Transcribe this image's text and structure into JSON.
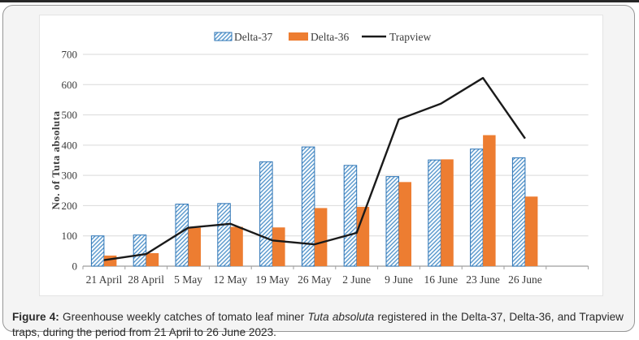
{
  "caption": {
    "label": "Figure 4:",
    "before_italic": " Greenhouse weekly catches of tomato leaf miner ",
    "italic": "Tuta absoluta",
    "after_italic": " registered in the Delta-37, Delta-36, and Trapview traps, during the period from 21 April to 26 June 2023."
  },
  "chart_data": {
    "type": "bar+line",
    "title": "",
    "xlabel": "",
    "ylabel": "No. of Tuta absoluta",
    "ylim": [
      0,
      700
    ],
    "ytick_step": 100,
    "grid": true,
    "legend_position": "top-center",
    "categories": [
      "21 April",
      "28 April",
      "5 May",
      "12 May",
      "19 May",
      "26 May",
      "2 June",
      "9 June",
      "16 June",
      "23 June",
      "26 June"
    ],
    "series": [
      {
        "name": "Delta-37",
        "type": "bar",
        "style": "hatched",
        "color": "#5B9BD5",
        "border": "#2E75B6",
        "values": [
          100,
          103,
          205,
          207,
          345,
          394,
          333,
          296,
          351,
          387,
          358
        ]
      },
      {
        "name": "Delta-36",
        "type": "bar",
        "style": "solid",
        "color": "#ED7D31",
        "values": [
          35,
          43,
          127,
          130,
          128,
          192,
          196,
          278,
          353,
          433,
          230
        ]
      },
      {
        "name": "Trapview",
        "type": "line",
        "color": "#1A1A1A",
        "values": [
          20,
          40,
          127,
          140,
          85,
          72,
          110,
          485,
          537,
          622,
          422
        ]
      }
    ]
  },
  "colors": {
    "grid": "#d9d9d9",
    "axis": "#9e9e9e",
    "text": "#3b3b3b",
    "hatch_bg": "#f6fafd",
    "hatch_stripe": "#4E91C9"
  }
}
